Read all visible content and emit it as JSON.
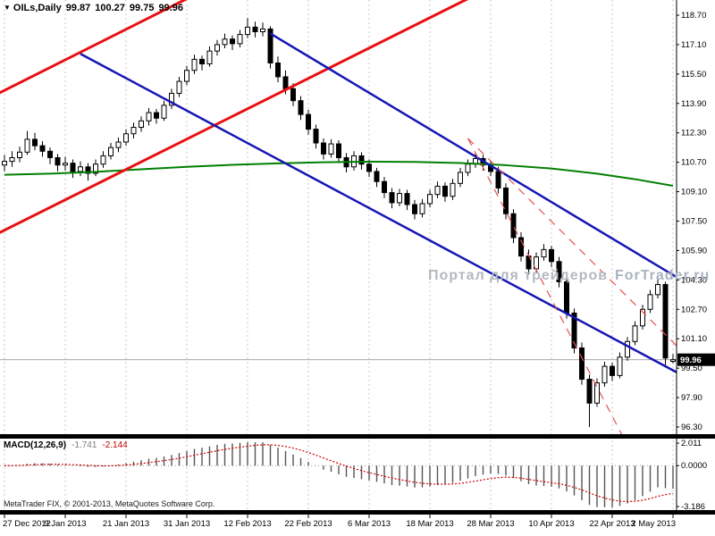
{
  "title": {
    "arrow": "▼",
    "symbol": "OILs,Daily",
    "open": "99.87",
    "high": "100.27",
    "low": "99.75",
    "close": "99.96"
  },
  "watermark": {
    "part1": "Портал для трейдеров",
    "part2": "ForTrader.ru"
  },
  "copyright": "MetaTrader FIX, © 2001-2013, MetaQuotes Software Corp.",
  "colors": {
    "bull": "#ffffff",
    "bear": "#000000",
    "wick": "#000000",
    "ma": "#008000",
    "trend_red": "#e81010",
    "trend_blue": "#1515b4",
    "channel_dashed": "#e85050",
    "grid": "#c9c9c9",
    "macd_bar": "#555555",
    "macd_signal": "#cc0000",
    "price_line": "#a8a8a8",
    "axis_line": "#000000",
    "price_box_bg": "#000000",
    "price_box_text": "#ffffff"
  },
  "chart_data": {
    "type": "candlestick",
    "symbol": "OILs",
    "timeframe": "Daily",
    "title": "OILs, Daily",
    "price_axis": {
      "min": 96.3,
      "max": 118.7,
      "step": 1.6,
      "labels": [
        "118.70",
        "117.10",
        "115.50",
        "113.90",
        "112.30",
        "110.70",
        "109.10",
        "107.50",
        "105.90",
        "104.30",
        "102.70",
        "101.10",
        "99.50",
        "97.90",
        "96.30"
      ]
    },
    "time_axis": {
      "labels": [
        "27 Dec 2012",
        "9 Jan 2013",
        "21 Jan 2013",
        "31 Jan 2013",
        "12 Feb 2013",
        "22 Feb 2013",
        "6 Mar 2013",
        "18 Mar 2013",
        "28 Mar 2013",
        "10 Apr 2013",
        "22 Apr 2013",
        "2 May 2013"
      ],
      "indices": [
        0,
        8,
        16,
        24,
        32,
        40,
        48,
        56,
        64,
        72,
        80,
        88
      ]
    },
    "current_price": {
      "value": 99.96,
      "label": "99.96"
    },
    "ohlc": [
      [
        110.55,
        111.1,
        110.2,
        110.75
      ],
      [
        110.75,
        111.3,
        110.45,
        110.95
      ],
      [
        110.95,
        111.55,
        110.7,
        111.25
      ],
      [
        111.25,
        112.4,
        111.1,
        111.95
      ],
      [
        111.95,
        112.3,
        111.35,
        111.6
      ],
      [
        111.6,
        111.85,
        111.0,
        111.3
      ],
      [
        111.3,
        111.5,
        110.6,
        110.95
      ],
      [
        110.95,
        111.15,
        110.2,
        110.55
      ],
      [
        110.55,
        111.0,
        110.25,
        110.65
      ],
      [
        110.65,
        110.85,
        109.85,
        110.2
      ],
      [
        110.2,
        110.75,
        109.95,
        110.45
      ],
      [
        110.45,
        110.65,
        109.7,
        110.1
      ],
      [
        110.1,
        110.85,
        109.95,
        110.6
      ],
      [
        110.6,
        111.3,
        110.4,
        111.05
      ],
      [
        111.05,
        111.75,
        110.85,
        111.5
      ],
      [
        111.5,
        112.05,
        111.25,
        111.8
      ],
      [
        111.8,
        112.5,
        111.6,
        112.25
      ],
      [
        112.25,
        112.85,
        112.0,
        112.6
      ],
      [
        112.6,
        113.2,
        112.35,
        112.95
      ],
      [
        112.95,
        113.65,
        112.7,
        113.4
      ],
      [
        113.4,
        113.6,
        112.8,
        113.1
      ],
      [
        113.1,
        114.05,
        112.95,
        113.8
      ],
      [
        113.8,
        114.7,
        113.6,
        114.45
      ],
      [
        114.45,
        115.35,
        114.25,
        115.1
      ],
      [
        115.1,
        115.95,
        114.9,
        115.7
      ],
      [
        115.7,
        116.55,
        115.5,
        116.3
      ],
      [
        116.3,
        116.5,
        115.7,
        116.05
      ],
      [
        116.05,
        117.0,
        115.9,
        116.75
      ],
      [
        116.75,
        117.35,
        116.5,
        117.1
      ],
      [
        117.1,
        117.7,
        116.9,
        117.4
      ],
      [
        117.4,
        117.6,
        116.8,
        117.15
      ],
      [
        117.15,
        117.9,
        116.95,
        117.65
      ],
      [
        117.65,
        118.55,
        117.45,
        118.05
      ],
      [
        118.05,
        118.35,
        117.5,
        117.8
      ],
      [
        117.8,
        118.3,
        117.55,
        117.95
      ],
      [
        117.95,
        118.1,
        115.8,
        116.1
      ],
      [
        116.1,
        116.45,
        115.05,
        115.35
      ],
      [
        115.35,
        115.7,
        114.4,
        114.7
      ],
      [
        114.7,
        115.0,
        113.75,
        114.05
      ],
      [
        114.05,
        114.3,
        113.0,
        113.3
      ],
      [
        113.3,
        113.55,
        112.2,
        112.5
      ],
      [
        112.5,
        112.75,
        111.45,
        111.75
      ],
      [
        111.75,
        112.0,
        110.85,
        111.15
      ],
      [
        111.15,
        111.95,
        110.95,
        111.7
      ],
      [
        111.7,
        111.9,
        110.65,
        110.95
      ],
      [
        110.95,
        111.2,
        110.15,
        110.45
      ],
      [
        110.45,
        111.3,
        110.25,
        111.05
      ],
      [
        111.05,
        111.25,
        110.3,
        110.6
      ],
      [
        110.6,
        110.85,
        109.9,
        110.2
      ],
      [
        110.2,
        110.4,
        109.35,
        109.65
      ],
      [
        109.65,
        109.9,
        108.75,
        109.05
      ],
      [
        109.05,
        109.3,
        108.2,
        108.5
      ],
      [
        108.5,
        109.25,
        108.3,
        109.0
      ],
      [
        109.0,
        109.2,
        108.1,
        108.4
      ],
      [
        108.4,
        108.65,
        107.6,
        107.9
      ],
      [
        107.9,
        108.7,
        107.7,
        108.45
      ],
      [
        108.45,
        109.2,
        108.25,
        108.95
      ],
      [
        108.95,
        109.65,
        108.75,
        109.4
      ],
      [
        109.4,
        109.6,
        108.55,
        108.85
      ],
      [
        108.85,
        109.8,
        108.65,
        109.55
      ],
      [
        109.55,
        110.4,
        109.35,
        110.15
      ],
      [
        110.15,
        110.85,
        109.95,
        110.6
      ],
      [
        110.6,
        111.2,
        110.4,
        110.9
      ],
      [
        110.9,
        111.1,
        110.25,
        110.55
      ],
      [
        110.55,
        110.8,
        109.95,
        110.2
      ],
      [
        110.2,
        110.45,
        109.0,
        109.3
      ],
      [
        109.3,
        109.55,
        107.6,
        107.9
      ],
      [
        107.9,
        108.15,
        106.3,
        106.6
      ],
      [
        106.6,
        106.9,
        105.3,
        105.6
      ],
      [
        105.6,
        105.95,
        104.6,
        104.9
      ],
      [
        104.9,
        105.8,
        104.7,
        105.55
      ],
      [
        105.55,
        106.25,
        105.35,
        105.95
      ],
      [
        105.95,
        106.15,
        105.0,
        105.3
      ],
      [
        105.3,
        105.55,
        103.9,
        104.2
      ],
      [
        104.2,
        104.45,
        102.2,
        102.5
      ],
      [
        102.5,
        102.75,
        100.3,
        100.6
      ],
      [
        100.6,
        100.9,
        98.6,
        98.9
      ],
      [
        98.9,
        99.15,
        96.3,
        97.6
      ],
      [
        97.6,
        98.95,
        97.4,
        98.7
      ],
      [
        98.7,
        99.85,
        98.5,
        99.6
      ],
      [
        99.6,
        99.8,
        98.8,
        99.1
      ],
      [
        99.1,
        100.35,
        98.95,
        100.1
      ],
      [
        100.1,
        101.2,
        99.9,
        100.95
      ],
      [
        100.95,
        102.05,
        100.75,
        101.8
      ],
      [
        101.8,
        102.95,
        101.6,
        102.7
      ],
      [
        102.7,
        103.75,
        102.5,
        103.5
      ],
      [
        103.5,
        104.55,
        103.3,
        104.05
      ],
      [
        104.05,
        104.2,
        99.55,
        100.05
      ],
      [
        99.87,
        100.27,
        99.75,
        99.96
      ]
    ],
    "moving_average_green": [
      [
        0,
        110.02
      ],
      [
        6,
        110.08
      ],
      [
        12,
        110.18
      ],
      [
        18,
        110.32
      ],
      [
        24,
        110.45
      ],
      [
        30,
        110.56
      ],
      [
        36,
        110.64
      ],
      [
        42,
        110.7
      ],
      [
        48,
        110.73
      ],
      [
        54,
        110.72
      ],
      [
        60,
        110.66
      ],
      [
        66,
        110.54
      ],
      [
        72,
        110.36
      ],
      [
        78,
        110.08
      ],
      [
        83,
        109.78
      ],
      [
        88,
        109.42
      ]
    ],
    "trendlines": [
      {
        "name": "ascending-channel-upper",
        "style": "solid",
        "color_key": "trend_red",
        "width": 3,
        "points": [
          [
            -1,
            114.4
          ],
          [
            25,
            119.8
          ]
        ]
      },
      {
        "name": "ascending-channel-lower",
        "style": "solid",
        "color_key": "trend_red",
        "width": 3,
        "points": [
          [
            -1,
            106.8
          ],
          [
            62,
            119.8
          ]
        ]
      },
      {
        "name": "descending-trendline-inner",
        "style": "solid",
        "color_key": "trend_blue",
        "width": 2.5,
        "points": [
          [
            35,
            117.7
          ],
          [
            89.5,
            104.2
          ]
        ]
      },
      {
        "name": "descending-trendline-outer",
        "style": "solid",
        "color_key": "trend_blue",
        "width": 2.5,
        "points": [
          [
            10,
            116.6
          ],
          [
            89.5,
            99.05
          ]
        ]
      },
      {
        "name": "descending-fan-dashed-steep",
        "style": "dashed",
        "color_key": "channel_dashed",
        "width": 1.2,
        "points": [
          [
            61,
            112.0
          ],
          [
            82,
            95.3
          ]
        ]
      },
      {
        "name": "descending-fan-dashed-shallow",
        "style": "dashed",
        "color_key": "channel_dashed",
        "width": 1.2,
        "points": [
          [
            61,
            112.0
          ],
          [
            89.5,
            100.3
          ]
        ]
      }
    ],
    "macd": {
      "label": "MACD(12,26,9)",
      "fast": 12,
      "slow": 26,
      "signal": 9,
      "main_last": "-1.741",
      "signal_last": "-2.144",
      "axis_labels": [
        "2.011",
        "0.0000",
        "-3.186"
      ]
    }
  }
}
